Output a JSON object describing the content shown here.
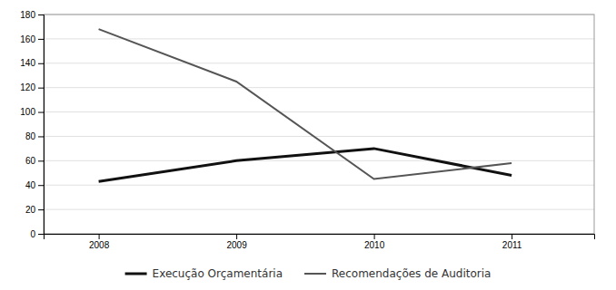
{
  "chart_data": {
    "type": "line",
    "x": [
      2008,
      2009,
      2010,
      2011
    ],
    "xlim": [
      2007.6,
      2011.6
    ],
    "xticks": [
      2008,
      2009,
      2010,
      2011
    ],
    "ylim": [
      0,
      180
    ],
    "yticks": [
      0,
      20,
      40,
      60,
      80,
      100,
      120,
      140,
      160,
      180
    ],
    "grid": true,
    "legend": "bottom",
    "series": [
      {
        "name": "Execução Orçamentária",
        "color": "#111111",
        "values": [
          43,
          60,
          70,
          48
        ]
      },
      {
        "name": "Recomendações de Auditoria",
        "color": "#555555",
        "values": [
          168,
          125,
          45,
          58
        ]
      }
    ]
  }
}
